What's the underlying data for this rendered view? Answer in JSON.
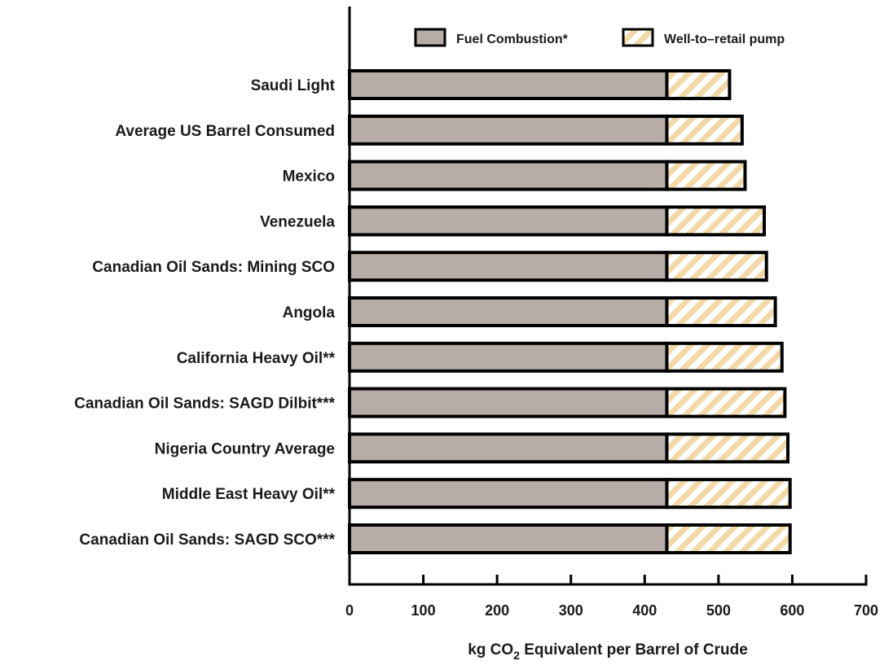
{
  "chart_data": {
    "type": "bar",
    "orientation": "horizontal",
    "stacked": true,
    "categories": [
      "Saudi Light",
      "Average US Barrel Consumed",
      "Mexico",
      "Venezuela",
      "Canadian Oil Sands: Mining SCO",
      "Angola",
      "California Heavy Oil**",
      "Canadian Oil Sands: SAGD Dilbit***",
      "Nigeria Country Average",
      "Middle East Heavy Oil**",
      "Canadian Oil Sands: SAGD SCO***"
    ],
    "series": [
      {
        "name": "Fuel Combustion*",
        "color": "#b8aca6",
        "pattern": "solid",
        "values": [
          430,
          430,
          430,
          430,
          430,
          430,
          430,
          430,
          430,
          430,
          430
        ]
      },
      {
        "name": "Well-to–retail pump",
        "color": "#f2d9a8",
        "pattern": "diagonal-hatch",
        "values": [
          85,
          102,
          106,
          132,
          135,
          147,
          156,
          160,
          164,
          167,
          167
        ]
      }
    ],
    "xlabel": {
      "prefix": "kg CO",
      "subscript": "2",
      "suffix": " Equivalent per Barrel of Crude"
    },
    "xlim": [
      0,
      700
    ],
    "xticks": [
      "0",
      "100",
      "200",
      "300",
      "400",
      "500",
      "600",
      "700"
    ],
    "legend_position": "top",
    "grid": false,
    "bar_edge_color": "#000000",
    "axis_color": "#000000"
  }
}
